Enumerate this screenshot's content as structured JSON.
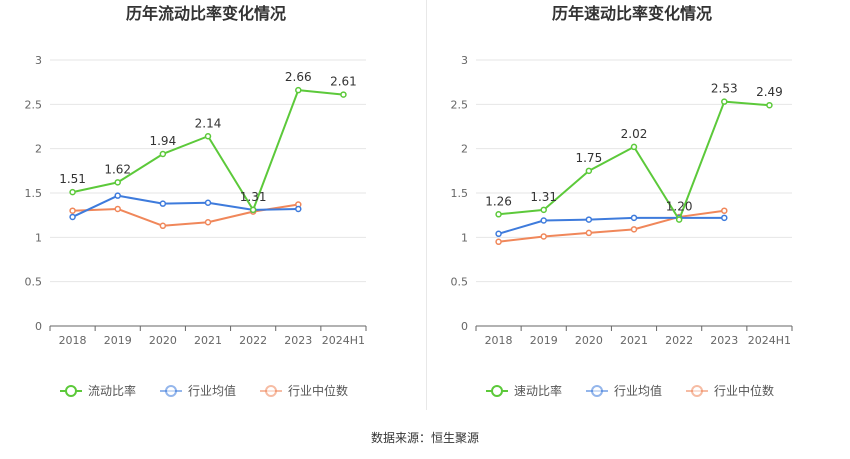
{
  "source_label": "数据来源：恒生聚源",
  "colors": {
    "main_series": "#5cc93a",
    "industry_avg": "#3e7bdc",
    "industry_median": "#f0875a",
    "axis": "#666666",
    "grid": "#e6e6e6",
    "tick_label": "#666666",
    "value_label": "#333333"
  },
  "chart_data": [
    {
      "type": "line",
      "title": "历年流动比率变化情况",
      "categories": [
        "2018",
        "2019",
        "2020",
        "2021",
        "2022",
        "2023",
        "2024H1"
      ],
      "yticks": [
        "0",
        "0.5",
        "1",
        "1.5",
        "2",
        "2.5",
        "3"
      ],
      "ylim": [
        0,
        3
      ],
      "grid": true,
      "legend_position": "bottom",
      "series": [
        {
          "name": "流动比率",
          "values": [
            1.51,
            1.62,
            1.94,
            2.14,
            1.31,
            2.66,
            2.61
          ],
          "labels": [
            "1.51",
            "1.62",
            "1.94",
            "2.14",
            "1.31",
            "2.66",
            "2.61"
          ]
        },
        {
          "name": "行业均值",
          "values": [
            1.23,
            1.47,
            1.38,
            1.39,
            1.31,
            1.32,
            null
          ]
        },
        {
          "name": "行业中位数",
          "values": [
            1.3,
            1.32,
            1.13,
            1.17,
            1.29,
            1.37,
            null
          ]
        }
      ]
    },
    {
      "type": "line",
      "title": "历年速动比率变化情况",
      "categories": [
        "2018",
        "2019",
        "2020",
        "2021",
        "2022",
        "2023",
        "2024H1"
      ],
      "yticks": [
        "0",
        "0.5",
        "1",
        "1.5",
        "2",
        "2.5",
        "3"
      ],
      "ylim": [
        0,
        3
      ],
      "grid": true,
      "legend_position": "bottom",
      "series": [
        {
          "name": "速动比率",
          "values": [
            1.26,
            1.31,
            1.75,
            2.02,
            1.2,
            2.53,
            2.49
          ],
          "labels": [
            "1.26",
            "1.31",
            "1.75",
            "2.02",
            "1.20",
            "2.53",
            "2.49"
          ]
        },
        {
          "name": "行业均值",
          "values": [
            1.04,
            1.19,
            1.2,
            1.22,
            1.22,
            1.22,
            null
          ]
        },
        {
          "name": "行业中位数",
          "values": [
            0.95,
            1.01,
            1.05,
            1.09,
            1.23,
            1.3,
            null
          ]
        }
      ]
    }
  ]
}
